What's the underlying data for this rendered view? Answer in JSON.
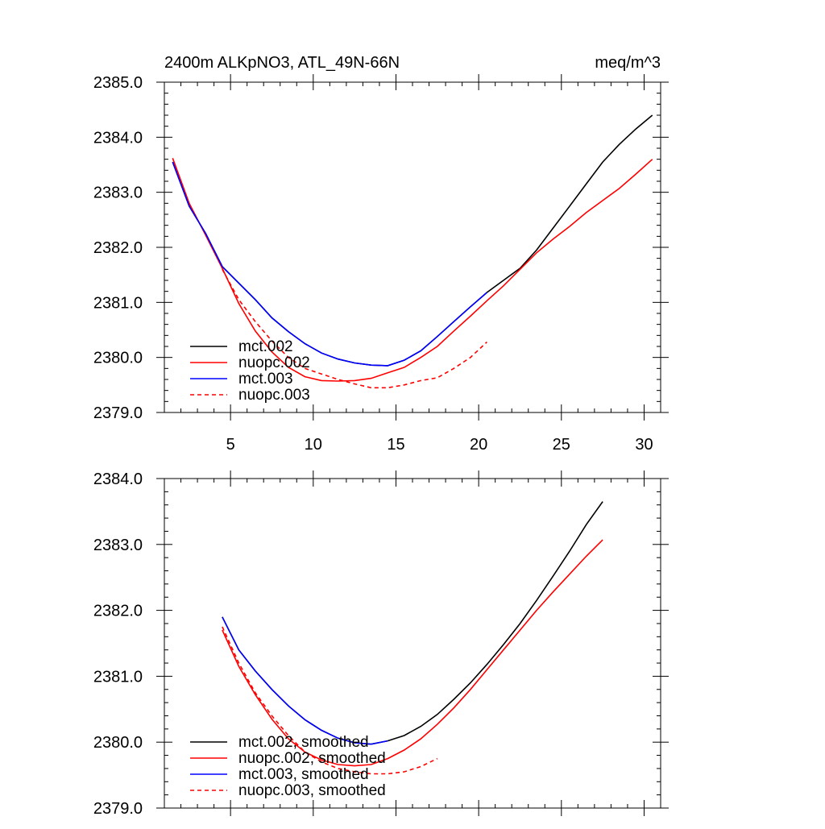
{
  "chart_data": [
    {
      "type": "line",
      "title": "2400m ALKpNO3, ATL_49N-66N",
      "units": "meq/m^3",
      "xlim": [
        1,
        31
      ],
      "ylim": [
        2379.0,
        2385.0
      ],
      "xticks": [
        5,
        10,
        15,
        20,
        25,
        30
      ],
      "yticks": [
        2379.0,
        2380.0,
        2381.0,
        2382.0,
        2383.0,
        2384.0,
        2385.0
      ],
      "ytick_labels": [
        "2379.0",
        "2380.0",
        "2381.0",
        "2382.0",
        "2383.0",
        "2384.0",
        "2385.0"
      ],
      "xtick_labels": [
        "5",
        "10",
        "15",
        "20",
        "25",
        "30"
      ],
      "legend_position": "bottom-left",
      "series": [
        {
          "name": "mct.002",
          "color": "#000000",
          "dash": "solid",
          "x": [
            1.5,
            2.5,
            3.5,
            4.5,
            5.5,
            6.5,
            7.5,
            8.5,
            9.5,
            10.5,
            11.5,
            12.5,
            13.5,
            14.5,
            15.5,
            16.5,
            17.5,
            18.5,
            19.5,
            20.5,
            21.5,
            22.5,
            23.5,
            24.5,
            25.5,
            26.5,
            27.5,
            28.5,
            29.5,
            30.5
          ],
          "y": [
            2383.55,
            2382.75,
            2382.25,
            2381.65,
            2381.35,
            2381.05,
            2380.72,
            2380.47,
            2380.25,
            2380.08,
            2379.97,
            2379.9,
            2379.86,
            2379.85,
            2379.95,
            2380.12,
            2380.38,
            2380.65,
            2380.92,
            2381.18,
            2381.4,
            2381.62,
            2381.95,
            2382.35,
            2382.75,
            2383.15,
            2383.55,
            2383.87,
            2384.15,
            2384.4
          ]
        },
        {
          "name": "nuopc.002",
          "color": "#ff0000",
          "dash": "solid",
          "x": [
            1.5,
            2.5,
            3.5,
            4.5,
            5.5,
            6.5,
            7.5,
            8.5,
            9.5,
            10.5,
            11.5,
            12.5,
            13.5,
            14.5,
            15.5,
            16.5,
            17.5,
            18.5,
            19.5,
            20.5,
            21.5,
            22.5,
            23.5,
            24.5,
            25.5,
            26.5,
            27.5,
            28.5,
            29.5,
            30.5
          ],
          "y": [
            2383.62,
            2382.8,
            2382.22,
            2381.62,
            2380.98,
            2380.48,
            2380.1,
            2379.82,
            2379.65,
            2379.58,
            2379.57,
            2379.58,
            2379.62,
            2379.72,
            2379.82,
            2380.0,
            2380.2,
            2380.48,
            2380.75,
            2381.03,
            2381.3,
            2381.6,
            2381.9,
            2382.15,
            2382.38,
            2382.63,
            2382.85,
            2383.07,
            2383.33,
            2383.6
          ]
        },
        {
          "name": "mct.003",
          "color": "#0000ff",
          "dash": "solid",
          "x": [
            1.5,
            2.5,
            3.5,
            4.5,
            5.5,
            6.5,
            7.5,
            8.5,
            9.5,
            10.5,
            11.5,
            12.5,
            13.5,
            14.5,
            15.5,
            16.5,
            17.5,
            18.5,
            19.5,
            20.5
          ],
          "y": [
            2383.55,
            2382.75,
            2382.25,
            2381.65,
            2381.35,
            2381.05,
            2380.72,
            2380.47,
            2380.25,
            2380.08,
            2379.97,
            2379.9,
            2379.86,
            2379.85,
            2379.95,
            2380.12,
            2380.38,
            2380.65,
            2380.92,
            2381.18
          ]
        },
        {
          "name": "nuopc.003",
          "color": "#ff0000",
          "dash": "dashed",
          "x": [
            4.5,
            5.5,
            6.5,
            7.5,
            8.5,
            9.5,
            10.5,
            11.5,
            12.5,
            13.5,
            14.5,
            15.5,
            16.5,
            17.5,
            18.5,
            19.5,
            20.5
          ],
          "y": [
            2381.6,
            2381.05,
            2380.65,
            2380.3,
            2380.0,
            2379.8,
            2379.7,
            2379.6,
            2379.52,
            2379.45,
            2379.45,
            2379.5,
            2379.58,
            2379.63,
            2379.8,
            2380.0,
            2380.28
          ]
        }
      ]
    },
    {
      "type": "line",
      "title": "",
      "xlim": [
        1,
        31
      ],
      "ylim": [
        2379.0,
        2384.0
      ],
      "xticks": [
        5,
        10,
        15,
        20,
        25,
        30
      ],
      "yticks": [
        2379.0,
        2380.0,
        2381.0,
        2382.0,
        2383.0,
        2384.0
      ],
      "ytick_labels": [
        "2379.0",
        "2380.0",
        "2381.0",
        "2382.0",
        "2383.0",
        "2384.0"
      ],
      "legend_position": "bottom-left",
      "series": [
        {
          "name": "mct.002, smoothed",
          "color": "#000000",
          "dash": "solid",
          "x": [
            4.5,
            5.5,
            6.5,
            7.5,
            8.5,
            9.5,
            10.5,
            11.5,
            12.5,
            13.5,
            14.5,
            15.5,
            16.5,
            17.5,
            18.5,
            19.5,
            20.5,
            21.5,
            22.5,
            23.5,
            24.5,
            25.5,
            26.5,
            27.5
          ],
          "y": [
            2381.9,
            2381.4,
            2381.08,
            2380.8,
            2380.55,
            2380.34,
            2380.18,
            2380.06,
            2379.99,
            2379.97,
            2380.02,
            2380.1,
            2380.24,
            2380.42,
            2380.65,
            2380.9,
            2381.18,
            2381.48,
            2381.8,
            2382.15,
            2382.52,
            2382.9,
            2383.3,
            2383.65
          ]
        },
        {
          "name": "nuopc.002, smoothed",
          "color": "#ff0000",
          "dash": "solid",
          "x": [
            4.5,
            5.5,
            6.5,
            7.5,
            8.5,
            9.5,
            10.5,
            11.5,
            12.5,
            13.5,
            14.5,
            15.5,
            16.5,
            17.5,
            18.5,
            19.5,
            20.5,
            21.5,
            22.5,
            23.5,
            24.5,
            25.5,
            26.5,
            27.5
          ],
          "y": [
            2381.7,
            2381.15,
            2380.72,
            2380.35,
            2380.05,
            2379.85,
            2379.73,
            2379.66,
            2379.64,
            2379.66,
            2379.75,
            2379.88,
            2380.05,
            2380.27,
            2380.52,
            2380.8,
            2381.1,
            2381.4,
            2381.7,
            2382.0,
            2382.28,
            2382.55,
            2382.82,
            2383.07
          ]
        },
        {
          "name": "mct.003, smoothed",
          "color": "#0000ff",
          "dash": "solid",
          "x": [
            4.5,
            5.5,
            6.5,
            7.5,
            8.5,
            9.5,
            10.5,
            11.5,
            12.5,
            13.5,
            14.5
          ],
          "y": [
            2381.9,
            2381.4,
            2381.08,
            2380.8,
            2380.55,
            2380.34,
            2380.18,
            2380.06,
            2379.99,
            2379.97,
            2380.02
          ]
        },
        {
          "name": "nuopc.003, smoothed",
          "color": "#ff0000",
          "dash": "dashed",
          "x": [
            4.5,
            5.5,
            6.5,
            7.5,
            8.5,
            9.5,
            10.5,
            11.5,
            12.5,
            13.5,
            14.5,
            15.5,
            16.5,
            17.5
          ],
          "y": [
            2381.75,
            2381.2,
            2380.75,
            2380.4,
            2380.1,
            2379.85,
            2379.7,
            2379.6,
            2379.55,
            2379.52,
            2379.52,
            2379.55,
            2379.63,
            2379.75
          ]
        }
      ]
    }
  ]
}
